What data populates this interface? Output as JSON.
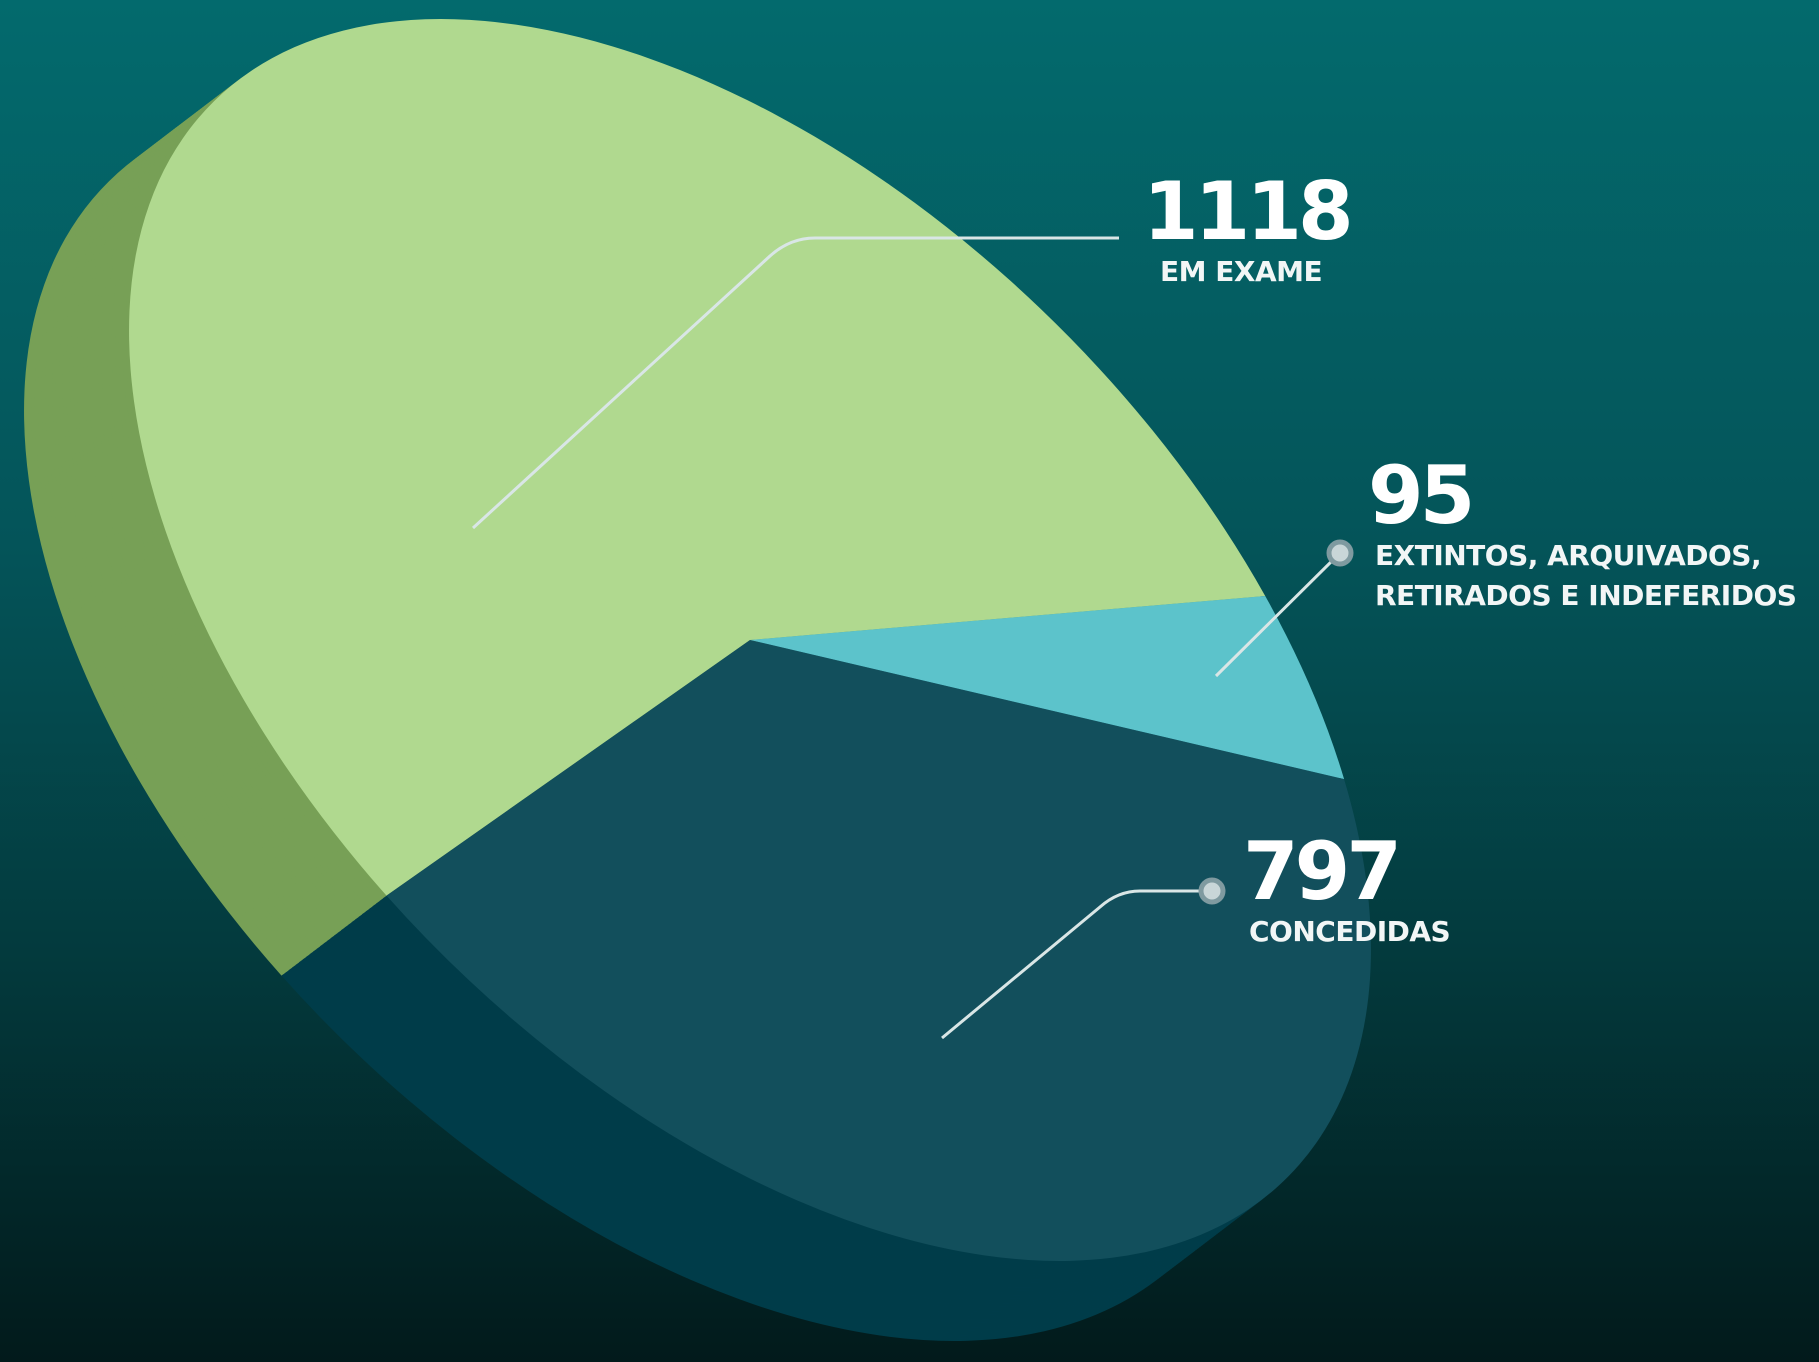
{
  "chart_data": {
    "type": "pie",
    "categories": [
      "EM EXAME",
      "EXTINTOS, ARQUIVADOS, RETIRADOS E INDEFERIDOS",
      "CONCEDIDAS"
    ],
    "values": [
      1118,
      95,
      797
    ],
    "colors": [
      "#b0d98f",
      "#5cc3cb",
      "#124f5c"
    ]
  }
}
